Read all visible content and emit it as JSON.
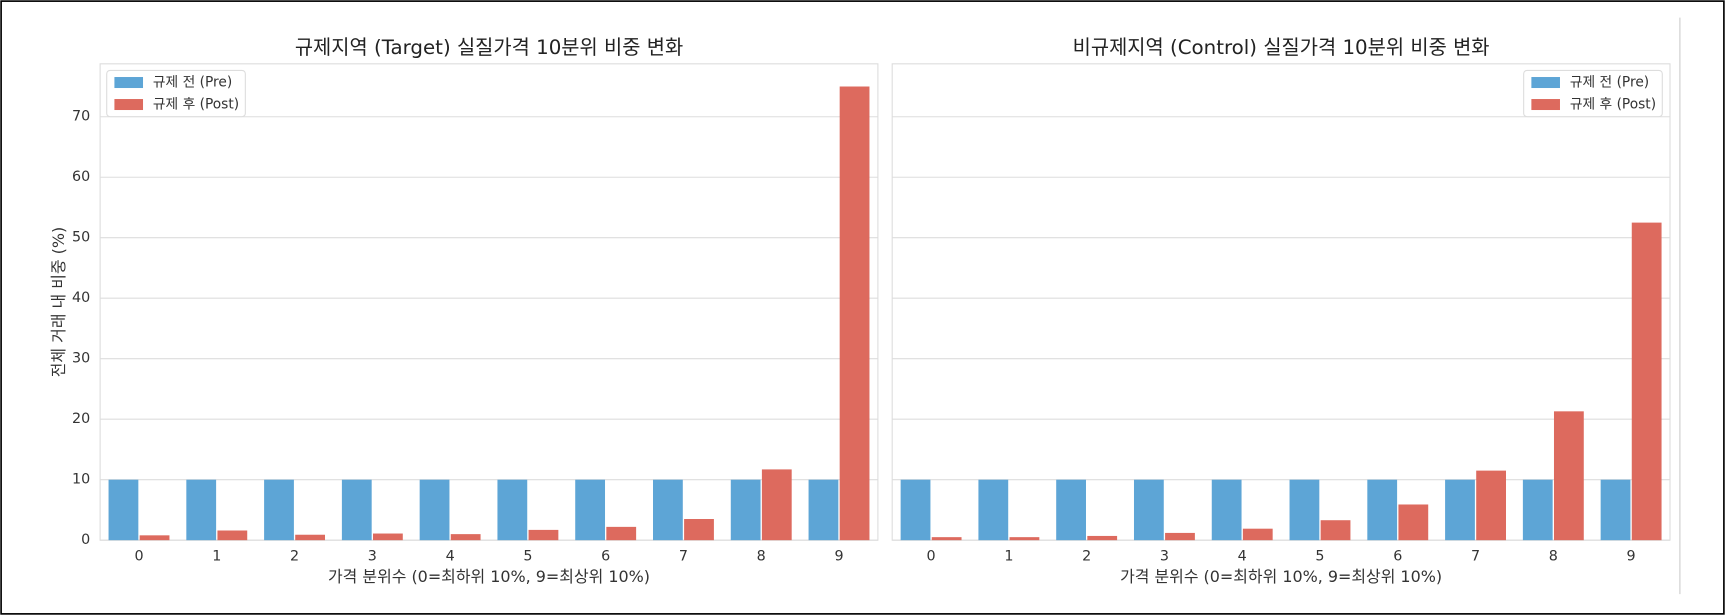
{
  "chart_data": [
    {
      "type": "bar",
      "title": "규제지역 (Target) 실질가격 10분위 비중 변화",
      "x_label": "가격 분위수 (0=최하위 10%, 9=최상위 10%)",
      "y_label": "전체 거래 내 비중 (%)",
      "categories": [
        "0",
        "1",
        "2",
        "3",
        "4",
        "5",
        "6",
        "7",
        "8",
        "9"
      ],
      "series": [
        {
          "name": "규제 전 (Pre)",
          "color": "#5da5d6",
          "values": [
            10,
            10,
            10,
            10,
            10,
            10,
            10,
            10,
            10,
            10
          ]
        },
        {
          "name": "규제 후 (Post)",
          "color": "#dd6a5e",
          "values": [
            0.8,
            1.6,
            0.9,
            1.1,
            1.0,
            1.7,
            2.2,
            3.5,
            11.7,
            75.0
          ]
        }
      ],
      "ylim": [
        0,
        78.75
      ],
      "yticks": [
        0,
        10,
        20,
        30,
        40,
        50,
        60,
        70
      ],
      "ytick_labels": true,
      "grid": true,
      "legend": "upper left"
    },
    {
      "type": "bar",
      "title": "비규제지역 (Control) 실질가격 10분위 비중 변화",
      "x_label": "가격 분위수 (0=최하위 10%, 9=최상위 10%)",
      "categories": [
        "0",
        "1",
        "2",
        "3",
        "4",
        "5",
        "6",
        "7",
        "8",
        "9"
      ],
      "series": [
        {
          "name": "규제 전 (Pre)",
          "color": "#5da5d6",
          "values": [
            10,
            10,
            10,
            10,
            10,
            10,
            10,
            10,
            10,
            10
          ]
        },
        {
          "name": "규제 후 (Post)",
          "color": "#dd6a5e",
          "values": [
            0.5,
            0.5,
            0.7,
            1.2,
            1.9,
            3.3,
            5.9,
            11.5,
            21.3,
            52.5
          ]
        }
      ],
      "ylim": [
        0,
        78.75
      ],
      "yticks": [
        0,
        10,
        20,
        30,
        40,
        50,
        60,
        70
      ],
      "ytick_labels": false,
      "grid": true,
      "legend": "upper right"
    }
  ]
}
